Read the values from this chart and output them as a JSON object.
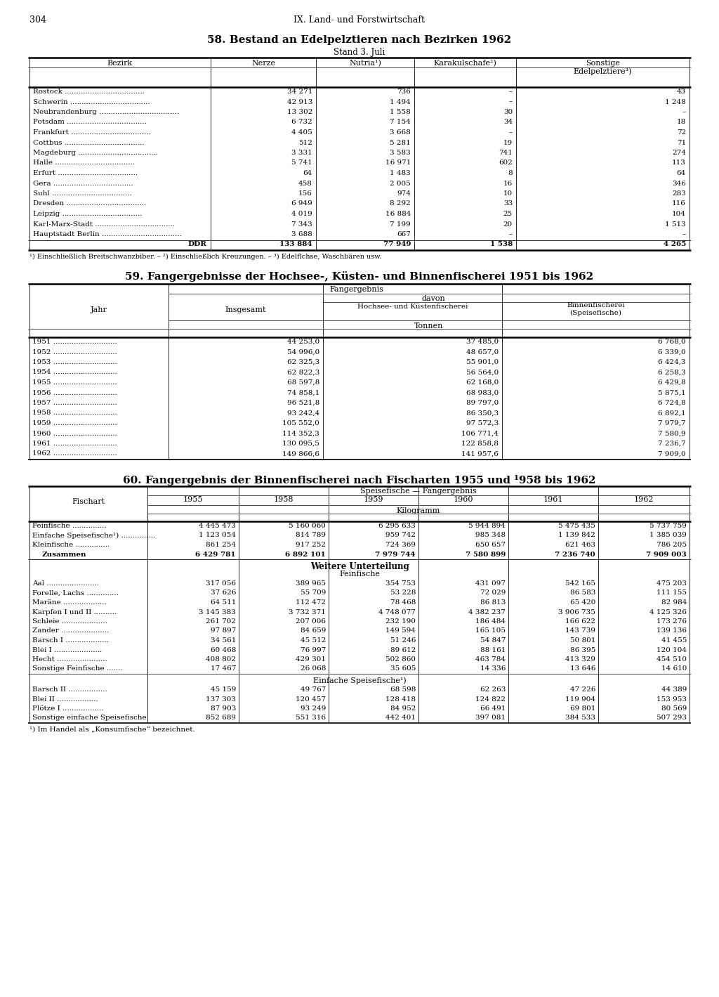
{
  "page_number": "304",
  "page_header": "IX. Land- und Forstwirtschaft",
  "table58_title": "58. Bestand an Edelpelztieren nach Bezirken 1962",
  "table58_subtitle": "Stand 3. Juli",
  "table58_rows": [
    [
      "Rostock",
      "34 271",
      "736",
      "–",
      "43"
    ],
    [
      "Schwerin",
      "42 913",
      "1 494",
      "–",
      "1 248"
    ],
    [
      "Neubrandenburg",
      "13 302",
      "1 558",
      "30",
      "–"
    ],
    [
      "Potsdam",
      "6 732",
      "7 154",
      "34",
      "18"
    ],
    [
      "Frankfurt",
      "4 405",
      "3 668",
      "–",
      "72"
    ],
    [
      "Cottbus",
      "512",
      "5 281",
      "19",
      "71"
    ],
    [
      "Magdeburg",
      "3 331",
      "3 583",
      "741",
      "274"
    ],
    [
      "Halle",
      "5 741",
      "16 971",
      "602",
      "113"
    ],
    [
      "Erfurt",
      "64",
      "1 483",
      "8",
      "64"
    ],
    [
      "Gera",
      "458",
      "2 005",
      "16",
      "346"
    ],
    [
      "Suhl",
      "156",
      "974",
      "10",
      "283"
    ],
    [
      "Dresden",
      "6 949",
      "8 292",
      "33",
      "116"
    ],
    [
      "Leipzig",
      "4 019",
      "16 884",
      "25",
      "104"
    ],
    [
      "Karl-Marx-Stadt",
      "7 343",
      "7 199",
      "20",
      "1 513"
    ],
    [
      "Hauptstadt Berlin",
      "3 688",
      "667",
      "–",
      "–"
    ],
    [
      "DDR",
      "133 884",
      "77 949",
      "1 538",
      "4 265"
    ]
  ],
  "table58_footnote": "¹) Einschließlich Breitschwanzbiber. – ²) Einschließlich Kreuzungen. – ³) Edelflchse, Waschbären usw.",
  "table59_title": "59. Fangergebnisse der Hochsee-, Küsten- und Binnenfischerei 1951 bis 1962",
  "table59_rows": [
    [
      "1951",
      "44 253,0",
      "37 485,0",
      "6 768,0"
    ],
    [
      "1952",
      "54 996,0",
      "48 657,0",
      "6 339,0"
    ],
    [
      "1953",
      "62 325,3",
      "55 901,0",
      "6 424,3"
    ],
    [
      "1954",
      "62 822,3",
      "56 564,0",
      "6 258,3"
    ],
    [
      "1955",
      "68 597,8",
      "62 168,0",
      "6 429,8"
    ],
    [
      "1956",
      "74 858,1",
      "68 983,0",
      "5 875,1"
    ],
    [
      "1957",
      "96 521,8",
      "89 797,0",
      "6 724,8"
    ],
    [
      "1958",
      "93 242,4",
      "86 350,3",
      "6 892,1"
    ],
    [
      "1959",
      "105 552,0",
      "97 572,3",
      "7 979,7"
    ],
    [
      "1960",
      "114 352,3",
      "106 771,4",
      "7 580,9"
    ],
    [
      "1961",
      "130 095,5",
      "122 858,8",
      "7 236,7"
    ],
    [
      "1962",
      "149 866,6",
      "141 957,6",
      "7 909,0"
    ]
  ],
  "table60_title": "60. Fangergebnis der Binnenfischerei nach Fischarten 1955 und ¹958 bis 1962",
  "table60_main_rows": [
    [
      "Feinfische",
      "4 445 473",
      "5 160 060",
      "6 295 633",
      "5 944 894",
      "5 475 435",
      "5 737 759"
    ],
    [
      "Einfache Speisefische¹)",
      "1 123 054",
      "814 789",
      "959 742",
      "985 348",
      "1 139 842",
      "1 385 039"
    ],
    [
      "Kleinfische",
      "861 254",
      "917 252",
      "724 369",
      "650 657",
      "621 463",
      "786 205"
    ],
    [
      "Zusammen",
      "6 429 781",
      "6 892 101",
      "7 979 744",
      "7 580 899",
      "7 236 740",
      "7 909 003"
    ]
  ],
  "table60_feinfische_rows": [
    [
      "Aal",
      "317 056",
      "389 965",
      "354 753",
      "431 097",
      "542 165",
      "475 203"
    ],
    [
      "Forelle, Lachs",
      "37 626",
      "55 709",
      "53 228",
      "72 029",
      "86 583",
      "111 155"
    ],
    [
      "Maräne",
      "64 511",
      "112 472",
      "78 468",
      "86 813",
      "65 420",
      "82 984"
    ],
    [
      "Karpfen I und II",
      "3 145 383",
      "3 732 371",
      "4 748 077",
      "4 382 237",
      "3 906 735",
      "4 125 326"
    ],
    [
      "Schleie",
      "261 702",
      "207 006",
      "232 190",
      "186 484",
      "166 622",
      "173 276"
    ],
    [
      "Zander",
      "97 897",
      "84 659",
      "149 594",
      "165 105",
      "143 739",
      "139 136"
    ],
    [
      "Barsch I",
      "34 561",
      "45 512",
      "51 246",
      "54 847",
      "50 801",
      "41 455"
    ],
    [
      "Blei I",
      "60 468",
      "76 997",
      "89 612",
      "88 161",
      "86 395",
      "120 104"
    ],
    [
      "Hecht",
      "408 802",
      "429 301",
      "502 860",
      "463 784",
      "413 329",
      "454 510"
    ],
    [
      "Sonstige Feinfische",
      "17 467",
      "26 068",
      "35 605",
      "14 336",
      "13 646",
      "14 610"
    ]
  ],
  "table60_speisefische_rows": [
    [
      "Barsch II",
      "45 159",
      "49 767",
      "68 598",
      "62 263",
      "47 226",
      "44 389"
    ],
    [
      "Blei II",
      "137 303",
      "120 457",
      "128 418",
      "124 822",
      "119 904",
      "153 953"
    ],
    [
      "Plötze I",
      "87 903",
      "93 249",
      "84 952",
      "66 491",
      "69 801",
      "80 569"
    ],
    [
      "Sonstige einfache Speisefische",
      "852 689",
      "551 316",
      "442 401",
      "397 081",
      "384 533",
      "507 293"
    ]
  ],
  "table60_footnote": "¹) Im Handel als „Konsumfische“ bezeichnet."
}
